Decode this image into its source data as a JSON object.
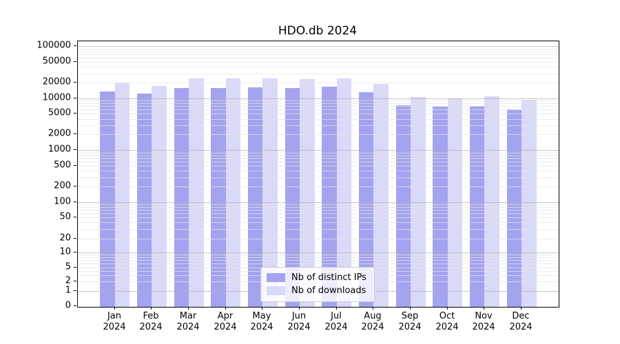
{
  "title": "HDO.db 2024",
  "legend": {
    "items": [
      {
        "label": "Nb of distinct IPs",
        "color": "#a3a3f0"
      },
      {
        "label": "Nb of downloads",
        "color": "#d9d9f8"
      }
    ]
  },
  "chart_data": {
    "type": "bar",
    "title": "HDO.db 2024",
    "categories": [
      "Jan 2024",
      "Feb 2024",
      "Mar 2024",
      "Apr 2024",
      "May 2024",
      "Jun 2024",
      "Jul 2024",
      "Aug 2024",
      "Sep 2024",
      "Oct 2024",
      "Nov 2024",
      "Dec 2024"
    ],
    "series": [
      {
        "name": "Nb of distinct IPs",
        "color": "#a3a3f0",
        "values": [
          13300,
          12100,
          15800,
          15900,
          16100,
          15800,
          16600,
          13000,
          7200,
          6900,
          7000,
          6000
        ]
      },
      {
        "name": "Nb of downloads",
        "color": "#d9d9f8",
        "values": [
          19700,
          17100,
          24000,
          24200,
          23900,
          23400,
          24100,
          19000,
          10600,
          9900,
          11000,
          9300
        ]
      }
    ],
    "xlabel": "",
    "ylabel": "",
    "yscale": "symlog",
    "yticks": [
      0,
      1,
      2,
      5,
      10,
      20,
      50,
      100,
      200,
      500,
      1000,
      2000,
      5000,
      10000,
      20000,
      50000,
      100000
    ],
    "ylim": [
      0,
      130000
    ],
    "grid": "horizontal major and minor gridlines, drawn over bars",
    "legend_position": "lower center",
    "bar_layout": "grouped pairs per month, touching"
  }
}
